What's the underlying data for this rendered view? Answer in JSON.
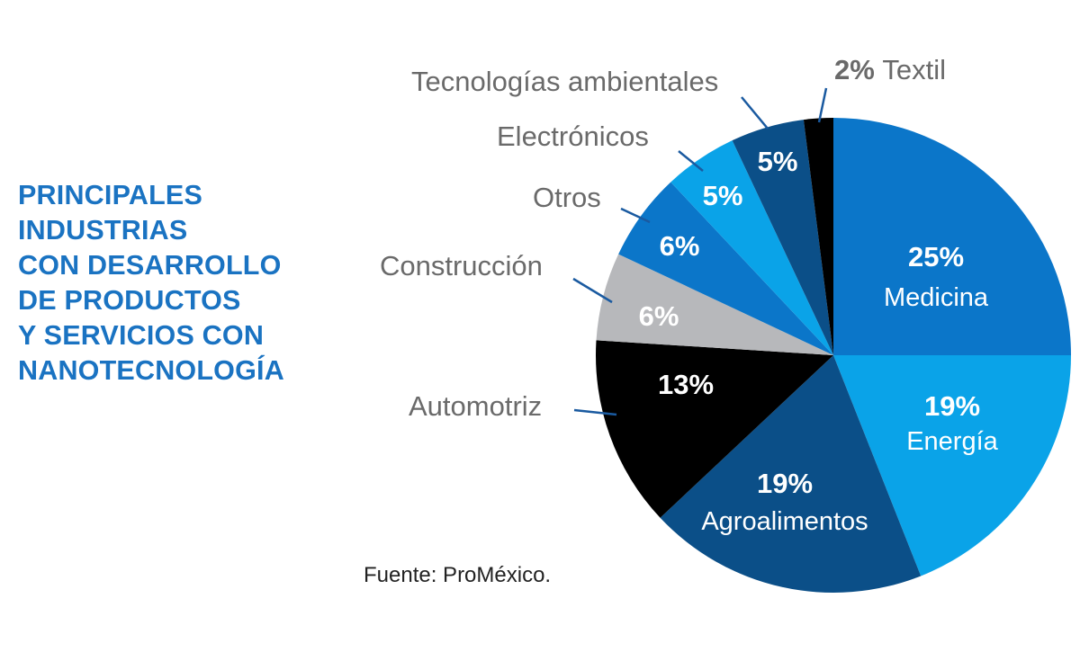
{
  "title_lines": [
    "PRINCIPALES",
    "INDUSTRIAS",
    "CON DESARROLLO",
    "DE PRODUCTOS",
    "Y SERVICIOS CON",
    "NANOTECNOLOGÍA"
  ],
  "source": "Fuente: ProMéxico.",
  "colors": {
    "title": "#1a73c2",
    "medicina": "#0b76c9",
    "energia": "#0aa3e8",
    "agroalimentos": "#0b4f88",
    "automotriz": "#000000",
    "construccion": "#b7b8bb",
    "otros": "#0b76c9",
    "electronicos": "#0aa3e8",
    "tecnologias": "#0b4f88",
    "textil": "#000000"
  },
  "chart_data": {
    "type": "pie",
    "title": "PRINCIPALES INDUSTRIAS CON DESARROLLO DE PRODUCTOS Y SERVICIOS CON NANOTECNOLOGÍA",
    "start": "12 o'clock, clockwise",
    "slices": [
      {
        "key": "medicina",
        "label": "Medicina",
        "value": 25,
        "pct_label": "25%",
        "placement": "inside"
      },
      {
        "key": "energia",
        "label": "Energía",
        "value": 19,
        "pct_label": "19%",
        "placement": "inside"
      },
      {
        "key": "agroalimentos",
        "label": "Agroalimentos",
        "value": 19,
        "pct_label": "19%",
        "placement": "inside"
      },
      {
        "key": "automotriz",
        "label": "Automotriz",
        "value": 13,
        "pct_label": "13%",
        "placement": "outside"
      },
      {
        "key": "construccion",
        "label": "Construcción",
        "value": 6,
        "pct_label": "6%",
        "placement": "outside"
      },
      {
        "key": "otros",
        "label": "Otros",
        "value": 6,
        "pct_label": "6%",
        "placement": "outside"
      },
      {
        "key": "electronicos",
        "label": "Electrónicos",
        "value": 5,
        "pct_label": "5%",
        "placement": "outside"
      },
      {
        "key": "tecnologias",
        "label": "Tecnologías ambientales",
        "value": 5,
        "pct_label": "5%",
        "placement": "outside"
      },
      {
        "key": "textil",
        "label": "Textil",
        "value": 2,
        "pct_label": "2%",
        "placement": "outside-inline"
      }
    ]
  }
}
